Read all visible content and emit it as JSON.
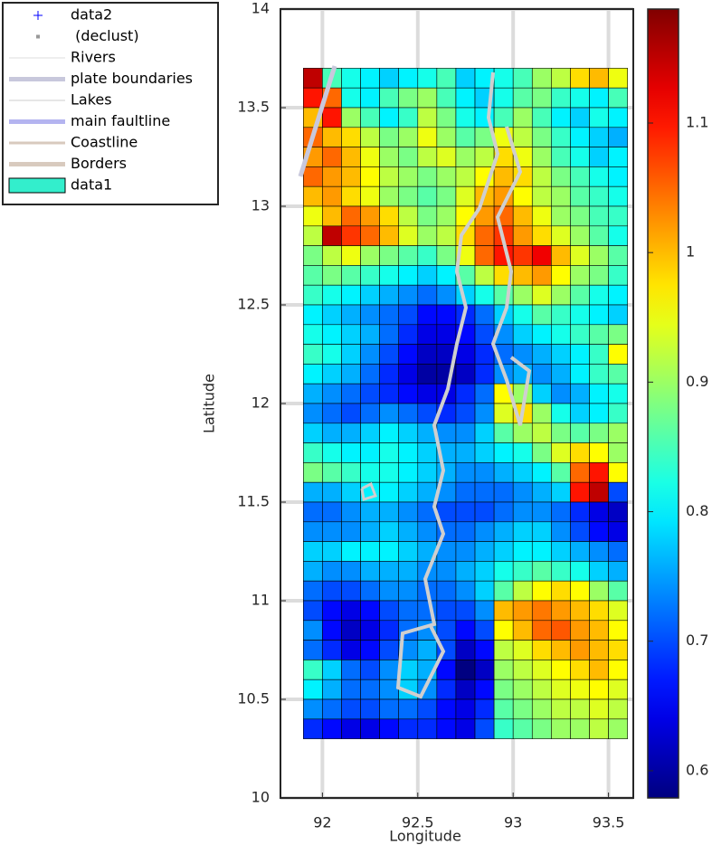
{
  "chart_data": {
    "type": "heatmap",
    "xlabel": "Longitude",
    "ylabel": "Latitude",
    "xlim": [
      91.78,
      93.63
    ],
    "ylim": [
      10,
      14
    ],
    "xticks": [
      92,
      92.5,
      93,
      93.5
    ],
    "yticks": [
      10,
      10.5,
      11,
      11.5,
      12,
      12.5,
      13,
      13.5,
      14
    ],
    "grid": true,
    "xbins": [
      91.9,
      92.0,
      92.1,
      92.2,
      92.3,
      92.4,
      92.5,
      92.6,
      92.7,
      92.8,
      92.9,
      93.0,
      93.1,
      93.2,
      93.3,
      93.4,
      93.5,
      93.6
    ],
    "ybins": [
      13.7,
      13.6,
      13.5,
      13.4,
      13.3,
      13.2,
      13.1,
      13.0,
      12.9,
      12.8,
      12.7,
      12.6,
      12.5,
      12.4,
      12.3,
      12.2,
      12.1,
      12.0,
      11.9,
      11.8,
      11.7,
      11.6,
      11.5,
      11.4,
      11.3,
      11.2,
      11.1,
      11.0,
      10.9,
      10.8,
      10.7,
      10.6,
      10.5,
      10.4,
      10.3
    ],
    "z": [
      [
        1.15,
        0.85,
        0.82,
        0.8,
        0.78,
        0.8,
        0.82,
        0.85,
        0.78,
        0.8,
        0.82,
        0.85,
        0.9,
        0.92,
        0.98,
        1.0,
        0.95
      ],
      [
        1.1,
        1.05,
        0.82,
        0.8,
        0.85,
        0.88,
        0.9,
        0.85,
        0.8,
        0.78,
        0.82,
        0.86,
        0.88,
        0.84,
        0.82,
        0.8,
        0.85
      ],
      [
        1.0,
        1.1,
        0.9,
        0.85,
        0.8,
        0.84,
        0.92,
        0.88,
        0.82,
        0.8,
        0.85,
        0.9,
        0.85,
        0.8,
        0.78,
        0.82,
        0.8
      ],
      [
        1.05,
        1.0,
        0.98,
        0.92,
        0.88,
        0.9,
        0.95,
        0.9,
        0.86,
        0.88,
        0.95,
        0.92,
        0.88,
        0.84,
        0.8,
        0.78,
        0.76
      ],
      [
        1.02,
        1.05,
        1.0,
        0.95,
        0.9,
        0.88,
        0.92,
        0.94,
        0.9,
        0.92,
        0.98,
        0.95,
        0.9,
        0.85,
        0.82,
        0.78,
        0.8
      ],
      [
        1.05,
        1.02,
        1.0,
        0.96,
        0.92,
        0.9,
        0.88,
        0.9,
        0.92,
        0.96,
        1.0,
        0.98,
        0.92,
        0.88,
        0.85,
        0.82,
        0.8
      ],
      [
        1.0,
        1.02,
        0.98,
        0.95,
        0.9,
        0.88,
        0.86,
        0.88,
        0.94,
        1.0,
        1.02,
        0.96,
        0.92,
        0.9,
        0.86,
        0.84,
        0.82
      ],
      [
        0.95,
        1.0,
        1.05,
        1.02,
        0.98,
        0.92,
        0.88,
        0.9,
        0.96,
        1.02,
        1.05,
        1.0,
        0.95,
        0.9,
        0.88,
        0.85,
        0.84
      ],
      [
        0.92,
        1.15,
        1.08,
        1.05,
        1.0,
        0.94,
        0.9,
        0.92,
        0.98,
        1.05,
        1.08,
        1.02,
        0.98,
        0.94,
        0.9,
        0.86,
        0.82
      ],
      [
        0.88,
        0.92,
        0.95,
        0.9,
        0.88,
        0.86,
        0.84,
        0.88,
        0.95,
        1.05,
        1.1,
        1.08,
        1.12,
        1.0,
        0.94,
        0.9,
        0.86
      ],
      [
        0.86,
        0.88,
        0.86,
        0.84,
        0.82,
        0.8,
        0.78,
        0.8,
        0.86,
        0.92,
        0.98,
        1.0,
        1.02,
        0.96,
        0.9,
        0.88,
        0.84
      ],
      [
        0.84,
        0.82,
        0.8,
        0.78,
        0.76,
        0.74,
        0.72,
        0.74,
        0.78,
        0.82,
        0.86,
        0.9,
        0.94,
        0.9,
        0.86,
        0.82,
        0.8
      ],
      [
        0.8,
        0.78,
        0.76,
        0.74,
        0.72,
        0.7,
        0.66,
        0.66,
        0.68,
        0.72,
        0.78,
        0.82,
        0.86,
        0.84,
        0.82,
        0.8,
        0.78
      ],
      [
        0.82,
        0.8,
        0.78,
        0.76,
        0.72,
        0.68,
        0.64,
        0.64,
        0.66,
        0.7,
        0.74,
        0.78,
        0.8,
        0.82,
        0.84,
        0.86,
        0.88
      ],
      [
        0.84,
        0.82,
        0.78,
        0.74,
        0.7,
        0.66,
        0.62,
        0.62,
        0.64,
        0.68,
        0.72,
        0.74,
        0.76,
        0.78,
        0.8,
        0.84,
        0.96
      ],
      [
        0.8,
        0.78,
        0.76,
        0.72,
        0.68,
        0.64,
        0.6,
        0.6,
        0.62,
        0.68,
        0.74,
        0.76,
        0.74,
        0.76,
        0.8,
        0.84,
        0.86
      ],
      [
        0.76,
        0.74,
        0.72,
        0.7,
        0.68,
        0.66,
        0.64,
        0.64,
        0.68,
        0.72,
        0.96,
        0.9,
        0.78,
        0.74,
        0.76,
        0.8,
        0.82
      ],
      [
        0.74,
        0.72,
        0.7,
        0.72,
        0.74,
        0.72,
        0.7,
        0.68,
        0.7,
        0.74,
        0.94,
        0.98,
        0.9,
        0.82,
        0.78,
        0.8,
        0.84
      ],
      [
        0.78,
        0.76,
        0.76,
        0.78,
        0.8,
        0.78,
        0.76,
        0.74,
        0.74,
        0.78,
        0.86,
        0.9,
        0.92,
        0.88,
        0.86,
        0.88,
        0.9
      ],
      [
        0.84,
        0.82,
        0.8,
        0.8,
        0.82,
        0.8,
        0.78,
        0.76,
        0.76,
        0.78,
        0.8,
        0.82,
        0.88,
        0.94,
        0.98,
        0.96,
        0.9
      ],
      [
        0.88,
        0.86,
        0.84,
        0.82,
        0.82,
        0.8,
        0.78,
        0.76,
        0.74,
        0.74,
        0.76,
        0.78,
        0.8,
        0.86,
        1.05,
        1.1,
        0.96
      ],
      [
        0.76,
        0.76,
        0.78,
        0.8,
        0.8,
        0.78,
        0.76,
        0.74,
        0.72,
        0.72,
        0.72,
        0.74,
        0.76,
        0.78,
        1.1,
        1.15,
        0.7
      ],
      [
        0.72,
        0.72,
        0.74,
        0.76,
        0.76,
        0.74,
        0.72,
        0.7,
        0.7,
        0.7,
        0.72,
        0.74,
        0.74,
        0.72,
        0.68,
        0.64,
        0.62
      ],
      [
        0.74,
        0.74,
        0.74,
        0.76,
        0.78,
        0.76,
        0.74,
        0.72,
        0.72,
        0.74,
        0.76,
        0.78,
        0.78,
        0.74,
        0.7,
        0.66,
        0.64
      ],
      [
        0.78,
        0.78,
        0.8,
        0.8,
        0.8,
        0.78,
        0.76,
        0.74,
        0.74,
        0.76,
        0.78,
        0.8,
        0.8,
        0.78,
        0.76,
        0.74,
        0.72
      ],
      [
        0.76,
        0.74,
        0.74,
        0.76,
        0.76,
        0.76,
        0.74,
        0.74,
        0.76,
        0.78,
        0.82,
        0.84,
        0.86,
        0.84,
        0.82,
        0.78,
        0.76
      ],
      [
        0.72,
        0.7,
        0.7,
        0.72,
        0.74,
        0.74,
        0.72,
        0.72,
        0.74,
        0.78,
        0.86,
        0.92,
        0.96,
        0.98,
        0.96,
        0.9,
        0.86
      ],
      [
        0.7,
        0.66,
        0.64,
        0.66,
        0.7,
        0.72,
        0.72,
        0.7,
        0.7,
        0.74,
        1.0,
        1.02,
        1.04,
        1.02,
        1.0,
        0.98,
        0.94
      ],
      [
        0.74,
        0.66,
        0.62,
        0.64,
        0.68,
        0.72,
        0.74,
        0.7,
        0.66,
        0.7,
        0.96,
        1.0,
        1.05,
        1.06,
        1.02,
        1.0,
        0.96
      ],
      [
        0.72,
        0.68,
        0.64,
        0.66,
        0.7,
        0.74,
        0.76,
        0.7,
        0.62,
        0.66,
        0.92,
        0.94,
        0.98,
        1.0,
        1.02,
        1.0,
        0.98
      ],
      [
        0.84,
        0.78,
        0.72,
        0.7,
        0.74,
        0.78,
        0.76,
        0.66,
        0.58,
        0.62,
        0.9,
        0.92,
        0.94,
        0.96,
        0.98,
        1.0,
        0.96
      ],
      [
        0.8,
        0.76,
        0.72,
        0.72,
        0.74,
        0.78,
        0.74,
        0.68,
        0.62,
        0.66,
        0.88,
        0.9,
        0.92,
        0.94,
        0.95,
        0.96,
        0.94
      ],
      [
        0.74,
        0.72,
        0.7,
        0.7,
        0.72,
        0.72,
        0.7,
        0.66,
        0.64,
        0.68,
        0.86,
        0.88,
        0.9,
        0.92,
        0.92,
        0.94,
        0.92
      ],
      [
        0.68,
        0.66,
        0.64,
        0.64,
        0.66,
        0.68,
        0.68,
        0.66,
        0.64,
        0.7,
        0.84,
        0.86,
        0.88,
        0.9,
        0.9,
        0.92,
        0.9
      ]
    ],
    "colormap": "jet",
    "clim": [
      0.579,
      1.188
    ],
    "cticks": [
      0.6,
      0.7,
      0.8,
      0.9,
      1,
      1.1
    ],
    "legend": [
      {
        "name": "data2",
        "color": "#0000ff",
        "style": "plus"
      },
      {
        "name": " (declust)",
        "color": "#999999",
        "style": "dot"
      },
      {
        "name": "Rivers",
        "color": "#dddddd",
        "style": "thin"
      },
      {
        "name": "plate boundaries",
        "color": "#c8c8dc",
        "style": "thick"
      },
      {
        "name": "Lakes",
        "color": "#cccccc",
        "style": "thin"
      },
      {
        "name": "main faultline",
        "color": "#b4b4f0",
        "style": "thick"
      },
      {
        "name": "Coastline",
        "color": "#d8cabe",
        "style": "medium"
      },
      {
        "name": "Borders",
        "color": "#d8cabe",
        "style": "thick"
      },
      {
        "name": "data1",
        "color": "#33eecc",
        "style": "patch"
      }
    ]
  }
}
